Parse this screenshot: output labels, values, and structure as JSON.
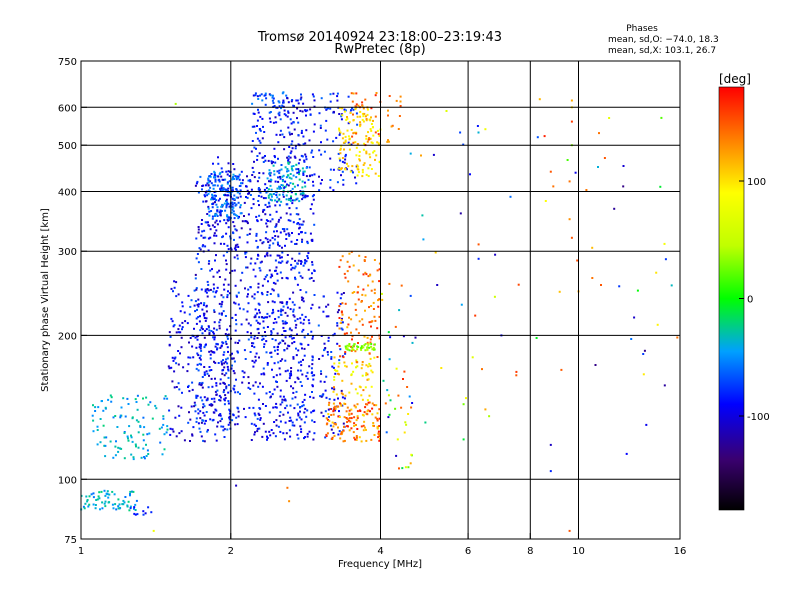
{
  "chart_data": {
    "type": "scatter",
    "title": "Tromsø 20140924 23:18:00–23:19:43",
    "subtitle": "RwPretec (8p)",
    "xlabel": "Frequency [MHz]",
    "ylabel": "Stationary phase Virtual Height [km]",
    "x_scale": "log",
    "y_scale": "log",
    "xlim": [
      1,
      16
    ],
    "ylim": [
      75,
      750
    ],
    "grid": true,
    "x_ticks": [
      1,
      2,
      4,
      6,
      8,
      10,
      16
    ],
    "x_gridlines": [
      2,
      4,
      6,
      8,
      10
    ],
    "y_ticks": [
      75,
      100,
      200,
      300,
      400,
      500,
      600,
      750
    ],
    "y_gridlines": [
      100,
      200,
      300,
      400,
      500,
      600
    ],
    "phases_header": "Phases",
    "stats": [
      "mean, sd,O: −74.0, 18.3",
      "mean, sd,X: 103.1, 26.7"
    ],
    "colorbar": {
      "label": "[deg]",
      "min": -180,
      "max": 180,
      "ticks": [
        100,
        0,
        -100
      ],
      "tick_labels": [
        "100",
        "0",
        "-100"
      ]
    },
    "clusters": [
      {
        "f": [
          1.0,
          1.3
        ],
        "h": [
          86,
          95
        ],
        "phase": [
          -60,
          -20
        ],
        "n": 70
      },
      {
        "f": [
          1.25,
          1.45
        ],
        "h": [
          84,
          88
        ],
        "phase": [
          -100,
          -70
        ],
        "n": 10
      },
      {
        "f": [
          1.05,
          1.5
        ],
        "h": [
          110,
          150
        ],
        "phase": [
          -60,
          -20
        ],
        "n": 110
      },
      {
        "f": [
          1.5,
          2.0
        ],
        "h": [
          120,
          260
        ],
        "phase": [
          -120,
          -60
        ],
        "n": 230
      },
      {
        "f": [
          1.7,
          2.2
        ],
        "h": [
          130,
          440
        ],
        "phase": [
          -120,
          -60
        ],
        "n": 420
      },
      {
        "f": [
          1.8,
          2.1
        ],
        "h": [
          350,
          440
        ],
        "phase": [
          -80,
          -40
        ],
        "n": 140
      },
      {
        "f": [
          1.75,
          2.05
        ],
        "h": [
          300,
          480
        ],
        "phase": [
          -110,
          -70
        ],
        "n": 60
      },
      {
        "f": [
          2.2,
          2.95
        ],
        "h": [
          120,
          640
        ],
        "phase": [
          -115,
          -65
        ],
        "n": 820
      },
      {
        "f": [
          2.35,
          2.85
        ],
        "h": [
          380,
          460
        ],
        "phase": [
          -55,
          -20
        ],
        "n": 90
      },
      {
        "f": [
          2.2,
          2.6
        ],
        "h": [
          580,
          650
        ],
        "phase": [
          -80,
          -50
        ],
        "n": 25
      },
      {
        "f": [
          3.0,
          3.4
        ],
        "h": [
          120,
          250
        ],
        "phase": [
          -120,
          -60
        ],
        "n": 90
      },
      {
        "f": [
          3.0,
          3.6
        ],
        "h": [
          400,
          650
        ],
        "phase": [
          -110,
          -60
        ],
        "n": 80
      },
      {
        "f": [
          3.1,
          4.0
        ],
        "h": [
          120,
          145
        ],
        "phase": [
          100,
          175
        ],
        "n": 140
      },
      {
        "f": [
          3.2,
          3.9
        ],
        "h": [
          145,
          180
        ],
        "phase": [
          60,
          140
        ],
        "n": 60
      },
      {
        "f": [
          3.3,
          4.0
        ],
        "h": [
          180,
          300
        ],
        "phase": [
          110,
          170
        ],
        "n": 110
      },
      {
        "f": [
          3.4,
          3.9
        ],
        "h": [
          186,
          192
        ],
        "phase": [
          15,
          45
        ],
        "n": 40
      },
      {
        "f": [
          3.3,
          4.0
        ],
        "h": [
          430,
          600
        ],
        "phase": [
          80,
          120
        ],
        "n": 120
      },
      {
        "f": [
          3.5,
          4.4
        ],
        "h": [
          500,
          650
        ],
        "phase": [
          120,
          170
        ],
        "n": 50
      },
      {
        "f": [
          4.0,
          4.7
        ],
        "h": [
          105,
          260
        ],
        "phase": [
          -110,
          170
        ],
        "n": 40
      },
      {
        "f": [
          4.5,
          16.0
        ],
        "h": [
          110,
          640
        ],
        "phase": [
          -130,
          170
        ],
        "n": 60
      }
    ],
    "points": [
      {
        "f": 1.55,
        "h": 610,
        "phase": 40
      },
      {
        "f": 2.05,
        "h": 97,
        "phase": -110
      },
      {
        "f": 2.6,
        "h": 96,
        "phase": 140
      },
      {
        "f": 2.62,
        "h": 90,
        "phase": 130
      },
      {
        "f": 1.4,
        "h": 78,
        "phase": 80
      },
      {
        "f": 8.8,
        "h": 104,
        "phase": -80
      },
      {
        "f": 8.8,
        "h": 118,
        "phase": -110
      },
      {
        "f": 9.6,
        "h": 78,
        "phase": 150
      },
      {
        "f": 9.7,
        "h": 620,
        "phase": 120
      },
      {
        "f": 9.7,
        "h": 600,
        "phase": 100
      },
      {
        "f": 9.7,
        "h": 560,
        "phase": 160
      },
      {
        "f": 9.7,
        "h": 500,
        "phase": 30
      },
      {
        "f": 9.6,
        "h": 420,
        "phase": 140
      },
      {
        "f": 9.6,
        "h": 350,
        "phase": 130
      },
      {
        "f": 9.7,
        "h": 320,
        "phase": 150
      },
      {
        "f": 8.8,
        "h": 440,
        "phase": 150
      },
      {
        "f": 8.9,
        "h": 410,
        "phase": 140
      },
      {
        "f": 11.0,
        "h": 530,
        "phase": 140
      },
      {
        "f": 11.3,
        "h": 470,
        "phase": 150
      },
      {
        "f": 11.1,
        "h": 255,
        "phase": 150
      },
      {
        "f": 12.3,
        "h": 410,
        "phase": -130
      },
      {
        "f": 12.5,
        "h": 113,
        "phase": -90
      },
      {
        "f": 15.8,
        "h": 198,
        "phase": 140
      },
      {
        "f": 6.5,
        "h": 540,
        "phase": 80
      },
      {
        "f": 5.8,
        "h": 360,
        "phase": -120
      },
      {
        "f": 6.3,
        "h": 310,
        "phase": 150
      },
      {
        "f": 6.8,
        "h": 295,
        "phase": -110
      },
      {
        "f": 7.3,
        "h": 390,
        "phase": -60
      },
      {
        "f": 5.2,
        "h": 255,
        "phase": -110
      },
      {
        "f": 6.2,
        "h": 220,
        "phase": 160
      },
      {
        "f": 6.4,
        "h": 170,
        "phase": 140
      },
      {
        "f": 7.5,
        "h": 165,
        "phase": 150
      },
      {
        "f": 7.0,
        "h": 200,
        "phase": -90
      },
      {
        "f": 6.5,
        "h": 140,
        "phase": 120
      },
      {
        "f": 4.6,
        "h": 108,
        "phase": 120
      },
      {
        "f": 4.5,
        "h": 106,
        "phase": 70
      },
      {
        "f": 4.6,
        "h": 480,
        "phase": -40
      }
    ]
  }
}
